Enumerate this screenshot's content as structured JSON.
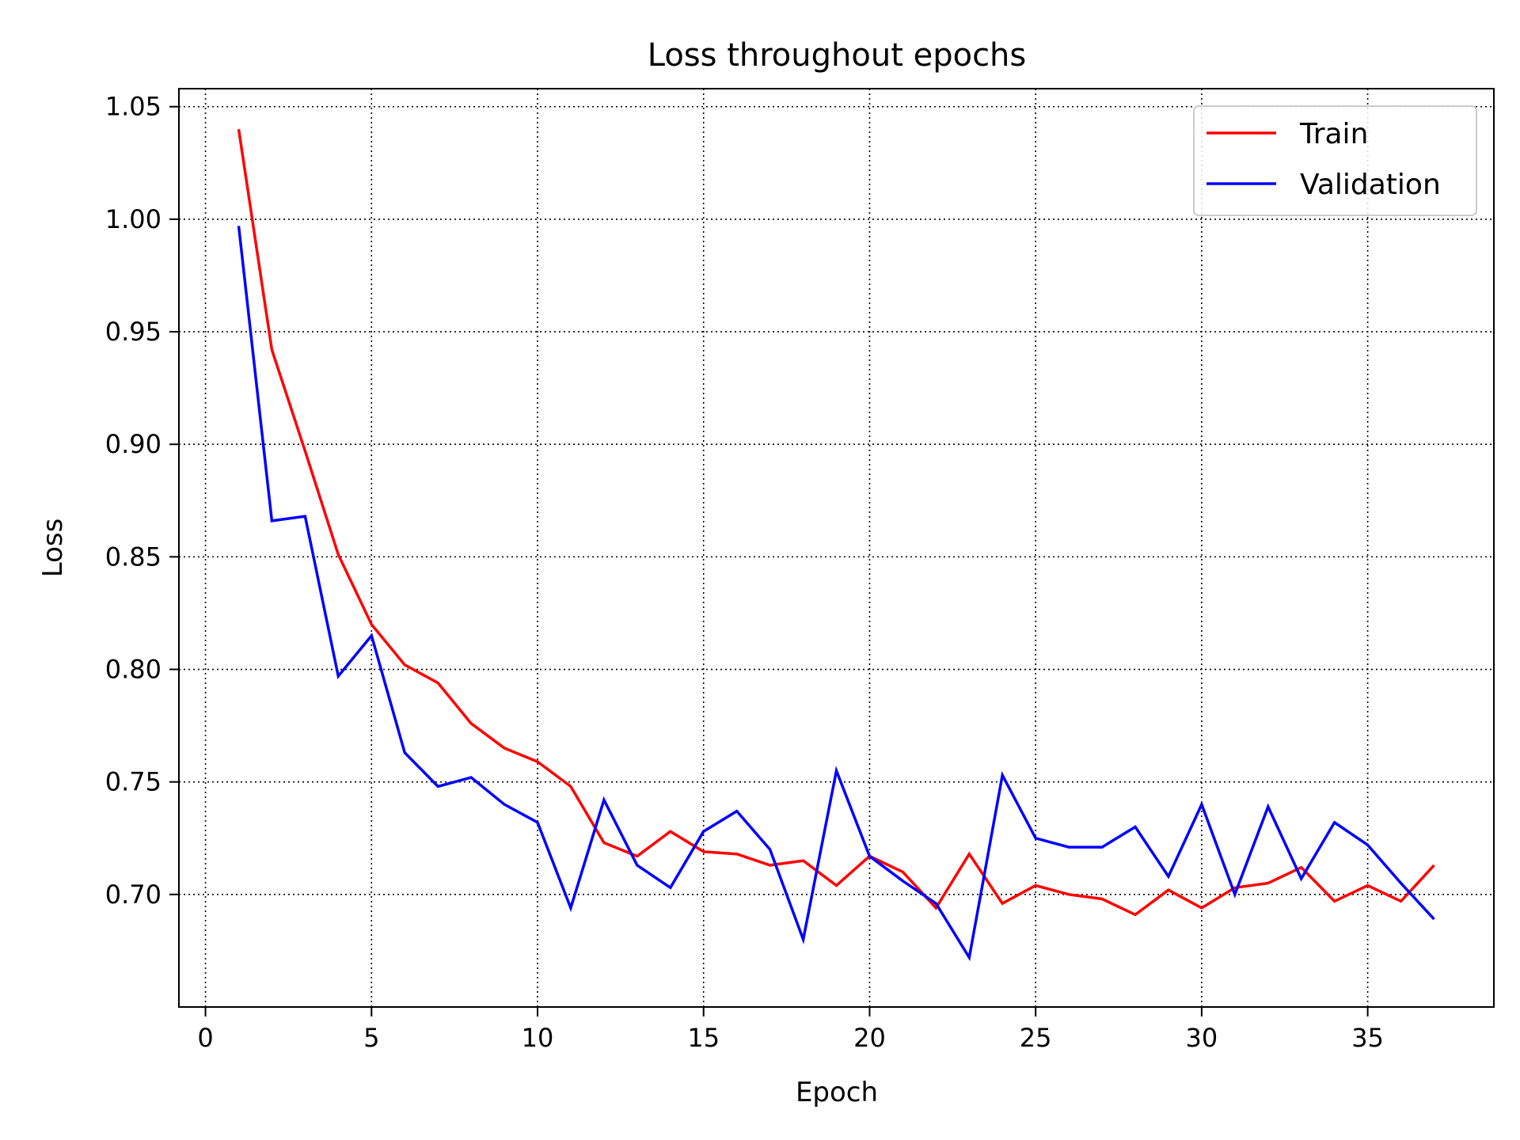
{
  "chart_data": {
    "type": "line",
    "title": "Loss throughout epochs",
    "xlabel": "Epoch",
    "ylabel": "Loss",
    "xlim": [
      -0.8,
      38.8
    ],
    "ylim": [
      0.65,
      1.058
    ],
    "xticks": [
      0,
      5,
      10,
      15,
      20,
      25,
      30,
      35
    ],
    "yticks": [
      0.7,
      0.75,
      0.8,
      0.85,
      0.9,
      0.95,
      1.0,
      1.05
    ],
    "xtick_labels": [
      "0",
      "5",
      "10",
      "15",
      "20",
      "25",
      "30",
      "35"
    ],
    "ytick_labels": [
      "0.70",
      "0.75",
      "0.80",
      "0.85",
      "0.90",
      "0.95",
      "1.00",
      "1.05"
    ],
    "grid": true,
    "legend_position": "top-right",
    "x": [
      1,
      2,
      3,
      4,
      5,
      6,
      7,
      8,
      9,
      10,
      11,
      12,
      13,
      14,
      15,
      16,
      17,
      18,
      19,
      20,
      21,
      22,
      23,
      24,
      25,
      26,
      27,
      28,
      29,
      30,
      31,
      32,
      33,
      34,
      35,
      36,
      37
    ],
    "series": [
      {
        "name": "Train",
        "color": "#ff0000",
        "values": [
          1.04,
          0.942,
          0.897,
          0.851,
          0.82,
          0.802,
          0.794,
          0.776,
          0.765,
          0.759,
          0.748,
          0.723,
          0.717,
          0.728,
          0.719,
          0.718,
          0.713,
          0.715,
          0.704,
          0.717,
          0.71,
          0.694,
          0.718,
          0.696,
          0.704,
          0.7,
          0.698,
          0.691,
          0.702,
          0.694,
          0.703,
          0.705,
          0.712,
          0.697,
          0.704,
          0.697,
          0.713
        ]
      },
      {
        "name": "Validation",
        "color": "#0000ff",
        "values": [
          0.997,
          0.866,
          0.868,
          0.797,
          0.815,
          0.763,
          0.748,
          0.752,
          0.74,
          0.732,
          0.694,
          0.742,
          0.713,
          0.703,
          0.728,
          0.737,
          0.72,
          0.68,
          0.755,
          0.717,
          0.706,
          0.696,
          0.672,
          0.753,
          0.725,
          0.721,
          0.721,
          0.73,
          0.708,
          0.74,
          0.7,
          0.739,
          0.707,
          0.732,
          0.722,
          0.705,
          0.689
        ]
      }
    ]
  }
}
